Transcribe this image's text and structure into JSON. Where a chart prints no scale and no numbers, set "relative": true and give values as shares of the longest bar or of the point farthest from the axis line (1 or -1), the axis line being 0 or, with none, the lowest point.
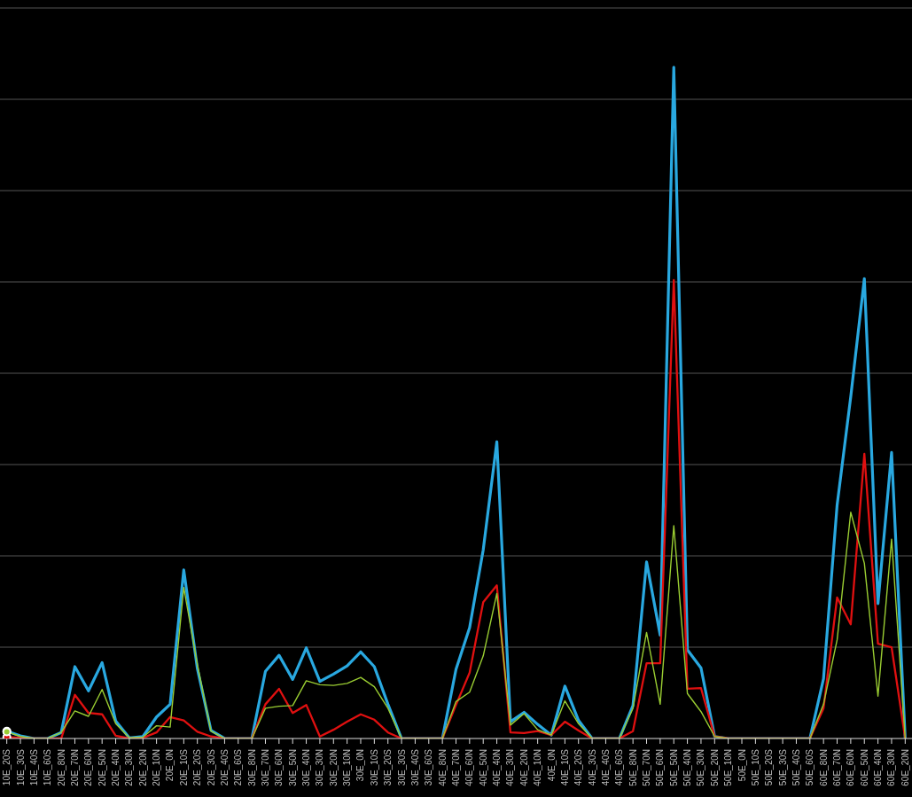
{
  "chart_data": {
    "type": "line",
    "relative": true,
    "grid": "y",
    "categories": [
      "10E_20S",
      "10E_30S",
      "10E_40S",
      "10E_60S",
      "20E_80N",
      "20E_70N",
      "20E_60N",
      "20E_50N",
      "20E_40N",
      "20E_30N",
      "20E_20N",
      "20E_10N",
      "20E_0N",
      "20E_10S",
      "20E_20S",
      "20E_30S",
      "20E_40S",
      "20E_60S",
      "30E_80N",
      "30E_70N",
      "30E_60N",
      "30E_50N",
      "30E_40N",
      "30E_30N",
      "30E_20N",
      "30E_10N",
      "30E_0N",
      "30E_10S",
      "30E_20S",
      "30E_30S",
      "30E_40S",
      "30E_60S",
      "40E_80N",
      "40E_70N",
      "40E_60N",
      "40E_50N",
      "40E_40N",
      "40E_30N",
      "40E_20N",
      "40E_10N",
      "40E_0N",
      "40E_10S",
      "40E_20S",
      "40E_30S",
      "40E_40S",
      "40E_60S",
      "50E_80N",
      "50E_70N",
      "50E_60N",
      "50E_50N",
      "50E_40N",
      "50E_30N",
      "50E_20N",
      "50E_10N",
      "50E_0N",
      "50E_10S",
      "50E_20S",
      "50E_30S",
      "50E_40S",
      "50E_60S",
      "60E_80N",
      "60E_70N",
      "60E_60N",
      "60E_50N",
      "60E_40N",
      "60E_30N",
      "60E_20N"
    ],
    "series": [
      {
        "color": "#29a8e0",
        "values": [
          0.011,
          0.004,
          0,
          0,
          0.009,
          0.107,
          0.071,
          0.113,
          0.026,
          0.001,
          0.003,
          0.032,
          0.051,
          0.251,
          0.104,
          0.012,
          0,
          0,
          0,
          0.1,
          0.124,
          0.088,
          0.135,
          0.085,
          0.096,
          0.108,
          0.129,
          0.107,
          0.051,
          0,
          0,
          0,
          0,
          0.103,
          0.165,
          0.281,
          0.442,
          0.025,
          0.039,
          0.021,
          0.005,
          0.078,
          0.027,
          0,
          0,
          0,
          0.049,
          0.263,
          0.154,
          1.0,
          0.132,
          0.105,
          0.003,
          0,
          0,
          0,
          0,
          0,
          0,
          0,
          0.089,
          0.348,
          0.509,
          0.685,
          0.201,
          0.426,
          0
        ]
      },
      {
        "color": "#e01010",
        "values": [
          0.002,
          0.001,
          0,
          0,
          0,
          0.065,
          0.038,
          0.036,
          0.004,
          0,
          0.001,
          0.009,
          0.032,
          0.027,
          0.01,
          0.003,
          0,
          0,
          0,
          0.051,
          0.074,
          0.038,
          0.05,
          0.003,
          0.013,
          0.025,
          0.036,
          0.028,
          0.009,
          0,
          0,
          0,
          0,
          0.05,
          0.098,
          0.203,
          0.228,
          0.009,
          0.008,
          0.011,
          0.005,
          0.025,
          0.012,
          0,
          0,
          0,
          0.011,
          0.112,
          0.112,
          0.683,
          0.074,
          0.075,
          0.003,
          0,
          0,
          0,
          0,
          0,
          0,
          0,
          0.045,
          0.21,
          0.17,
          0.424,
          0.141,
          0.136,
          0
        ]
      },
      {
        "color": "#9acd32",
        "values": [
          0.01,
          0.003,
          0,
          0,
          0.009,
          0.041,
          0.033,
          0.073,
          0.022,
          0.001,
          0.002,
          0.019,
          0.017,
          0.225,
          0.11,
          0.011,
          0,
          0,
          0,
          0.045,
          0.048,
          0.049,
          0.086,
          0.08,
          0.079,
          0.082,
          0.091,
          0.077,
          0.045,
          0,
          0,
          0,
          0,
          0.055,
          0.069,
          0.123,
          0.216,
          0.02,
          0.037,
          0.013,
          0.005,
          0.056,
          0.022,
          0,
          0,
          0,
          0.045,
          0.158,
          0.051,
          0.317,
          0.067,
          0.04,
          0.003,
          0,
          0,
          0,
          0,
          0,
          0,
          0,
          0.051,
          0.147,
          0.337,
          0.261,
          0.063,
          0.297,
          0
        ]
      }
    ]
  }
}
